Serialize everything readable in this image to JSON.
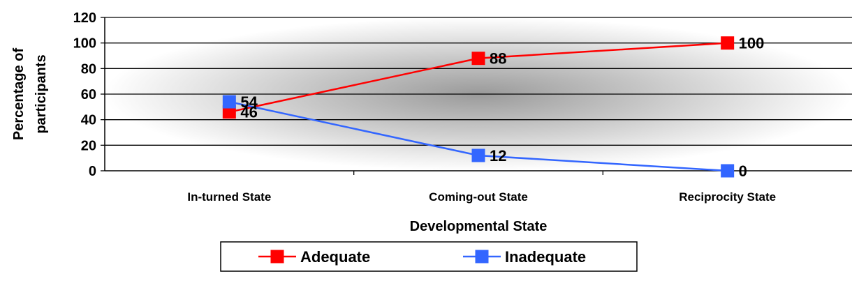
{
  "chart_data": {
    "type": "line",
    "title": "",
    "xlabel": "Developmental State",
    "ylabel_lines": [
      "Percentage of",
      "participants"
    ],
    "categories": [
      "In-turned State",
      "Coming-out State",
      "Reciprocity State"
    ],
    "ylim": [
      0,
      120
    ],
    "yticks": [
      "0",
      "20",
      "40",
      "60",
      "80",
      "100",
      "120"
    ],
    "grid": true,
    "legend_position": "bottom",
    "series": [
      {
        "name": "Adequate",
        "color": "#ff0000",
        "values": [
          46,
          88,
          100
        ],
        "labels": [
          "46",
          "88",
          "100"
        ]
      },
      {
        "name": "Inadequate",
        "color": "#3366ff",
        "values": [
          54,
          12,
          0
        ],
        "labels": [
          "54",
          "12",
          "0"
        ]
      }
    ]
  }
}
